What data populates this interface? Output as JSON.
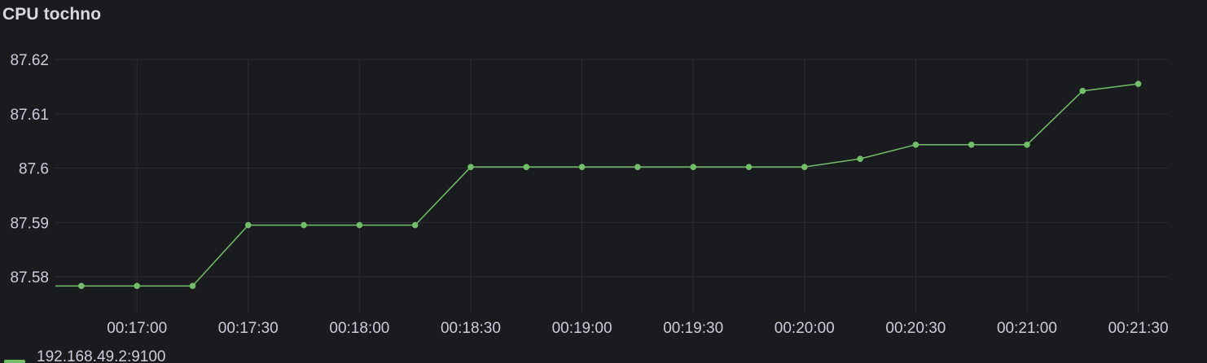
{
  "panel": {
    "title": "CPU tochno"
  },
  "colors": {
    "background": "#1a1b1f",
    "grid": "#2c2d31",
    "series": "#73bf69",
    "text": "#ccccdc"
  },
  "chart_data": {
    "type": "line",
    "title": "CPU tochno",
    "xlabel": "",
    "ylabel": "",
    "grid": true,
    "legend_position": "bottom-left",
    "x_tick_labels": [
      "00:17:00",
      "00:17:30",
      "00:18:00",
      "00:18:30",
      "00:19:00",
      "00:19:30",
      "00:20:00",
      "00:20:30",
      "00:21:00",
      "00:21:30"
    ],
    "y_tick_labels": [
      "87.62",
      "87.61",
      "87.6",
      "87.59",
      "87.58"
    ],
    "xlim": [
      "00:16:38",
      "00:21:38"
    ],
    "ylim": [
      87.5775,
      87.62
    ],
    "series": [
      {
        "name": "192.168.49.2:9100",
        "color": "#73bf69",
        "x": [
          "00:16:45",
          "00:17:00",
          "00:17:15",
          "00:17:30",
          "00:17:45",
          "00:18:00",
          "00:18:15",
          "00:18:30",
          "00:18:45",
          "00:19:00",
          "00:19:15",
          "00:19:30",
          "00:19:45",
          "00:20:00",
          "00:20:15",
          "00:20:30",
          "00:20:45",
          "00:21:00",
          "00:21:15",
          "00:21:30"
        ],
        "values": [
          87.5783,
          87.5783,
          87.5783,
          87.5895,
          87.5895,
          87.5895,
          87.5895,
          87.6002,
          87.6002,
          87.6002,
          87.6002,
          87.6002,
          87.6002,
          87.6002,
          87.6017,
          87.6043,
          87.6043,
          87.6043,
          87.6142,
          87.6155
        ]
      }
    ]
  }
}
